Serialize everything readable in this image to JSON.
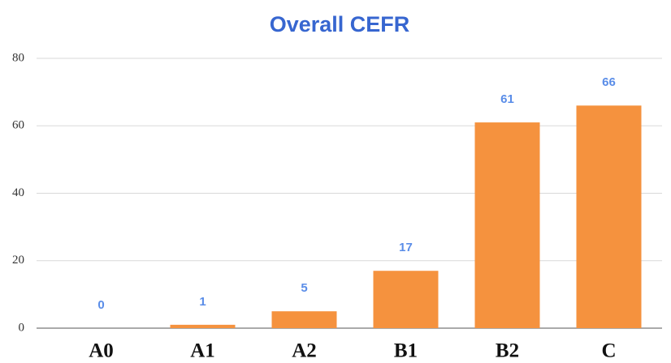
{
  "chart_data": {
    "type": "bar",
    "title": "Overall CEFR",
    "categories": [
      "A0",
      "A1",
      "A2",
      "B1",
      "B2",
      "C"
    ],
    "values": [
      0,
      1,
      5,
      17,
      61,
      66
    ],
    "color": "#f5923e",
    "ylim": [
      0,
      80
    ],
    "yticks": [
      0,
      20,
      40,
      60,
      80
    ],
    "grid": true
  }
}
